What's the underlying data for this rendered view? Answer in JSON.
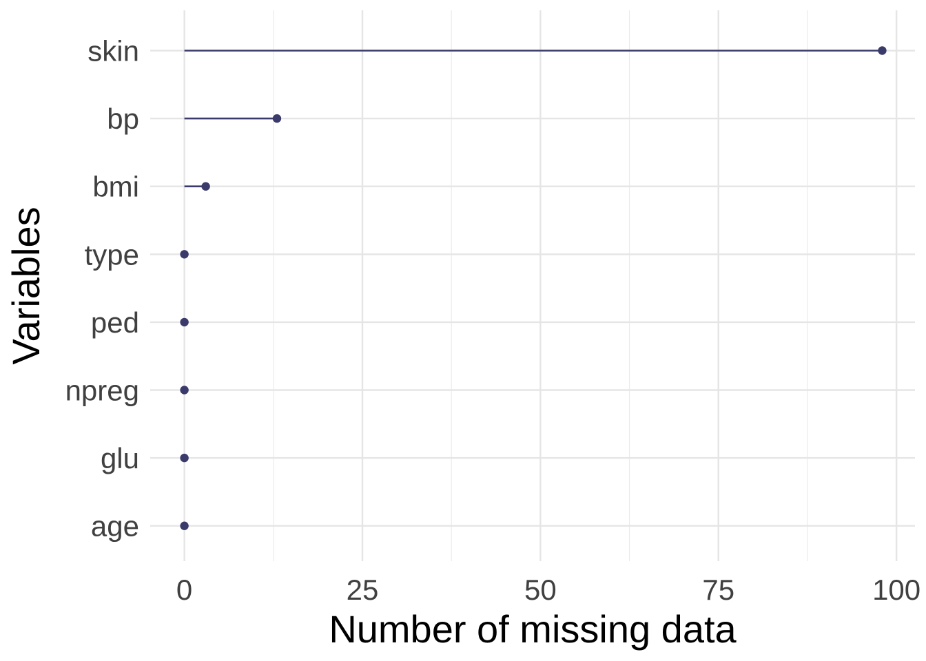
{
  "chart_data": {
    "type": "lollipop",
    "title": "",
    "xlabel": "Number of missing data",
    "ylabel": "Variables",
    "xlim": [
      -4.8,
      102.6
    ],
    "x_ticks": [
      0,
      25,
      50,
      75,
      100
    ],
    "x_tick_labels": [
      "0",
      "25",
      "50",
      "75",
      "100"
    ],
    "categories": [
      "skin",
      "bp",
      "bmi",
      "type",
      "ped",
      "npreg",
      "glu",
      "age"
    ],
    "values": [
      98,
      13,
      3,
      0,
      0,
      0,
      0,
      0
    ],
    "grid": true,
    "legend": "none",
    "colors": {
      "mark": "#3b3b6b",
      "grid": "#e5e5e5",
      "tick_text": "#404040",
      "title_text": "#000000"
    }
  }
}
